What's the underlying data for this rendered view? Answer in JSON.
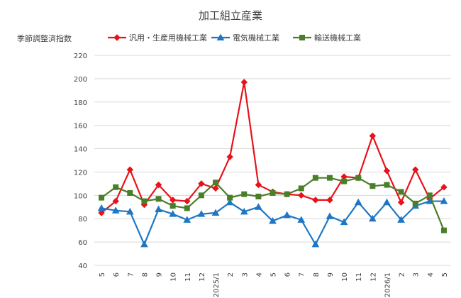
{
  "chart_data": {
    "type": "line",
    "title": "加工組立産業",
    "ylabel": "季節調整済指数",
    "xlabel": "",
    "ylim": [
      40,
      220
    ],
    "yticks": [
      40,
      60,
      80,
      100,
      120,
      140,
      160,
      180,
      200,
      220
    ],
    "grid": true,
    "legend": "top",
    "categories": [
      "5",
      "6",
      "7",
      "8",
      "9",
      "10",
      "11",
      "12",
      "2025/1",
      "2",
      "3",
      "4",
      "5",
      "6",
      "7",
      "8",
      "9",
      "10",
      "11",
      "12",
      "2026/1",
      "2",
      "3",
      "4",
      "5"
    ],
    "series": [
      {
        "name": "汎用・生産用機械工業",
        "color": "#e8121a",
        "marker": "diamond",
        "values": [
          85,
          95,
          122,
          92,
          109,
          96,
          95,
          110,
          106,
          133,
          197,
          109,
          103,
          101,
          100,
          96,
          96,
          116,
          115,
          151,
          121,
          94,
          122,
          97,
          107
        ]
      },
      {
        "name": "電気機械工業",
        "color": "#1f77c4",
        "marker": "triangle",
        "values": [
          89,
          87,
          86,
          58,
          88,
          84,
          79,
          84,
          85,
          94,
          86,
          90,
          78,
          83,
          79,
          58,
          82,
          77,
          94,
          80,
          94,
          79,
          91,
          95,
          95
        ]
      },
      {
        "name": "輸送機械工業",
        "color": "#4a7f2a",
        "marker": "square",
        "values": [
          98,
          107,
          102,
          95,
          97,
          91,
          89,
          100,
          111,
          98,
          101,
          99,
          102,
          101,
          106,
          115,
          115,
          112,
          115,
          108,
          109,
          103,
          93,
          100,
          70
        ]
      }
    ]
  }
}
